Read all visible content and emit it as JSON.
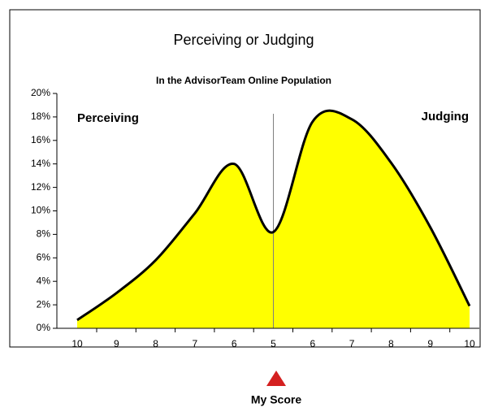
{
  "chart_data": {
    "type": "area",
    "title": "Perceiving or Judging",
    "subtitle": "In the AdvisorTeam Online Population",
    "annotations": [
      "Perceiving",
      "Judging",
      "My Score"
    ],
    "categories": [
      "10",
      "9",
      "8",
      "7",
      "6",
      "5",
      "6",
      "7",
      "8",
      "9",
      "10"
    ],
    "values": [
      0.7,
      3,
      5.8,
      9.8,
      14,
      8.2,
      17.6,
      17.8,
      14.1,
      8.6,
      1.9
    ],
    "color": "#ffff00",
    "line_color": "#000000",
    "ylim": [
      0,
      20
    ],
    "yticks": [
      {
        "value": 0,
        "label": "0%"
      },
      {
        "value": 2,
        "label": "2%"
      },
      {
        "value": 4,
        "label": "4%"
      },
      {
        "value": 6,
        "label": "6%"
      },
      {
        "value": 8,
        "label": "8%"
      },
      {
        "value": 10,
        "label": "10%"
      },
      {
        "value": 12,
        "label": "12%"
      },
      {
        "value": 14,
        "label": "14%"
      },
      {
        "value": 16,
        "label": "16%"
      },
      {
        "value": 18,
        "label": "18%"
      },
      {
        "value": 20,
        "label": "20%"
      }
    ]
  }
}
